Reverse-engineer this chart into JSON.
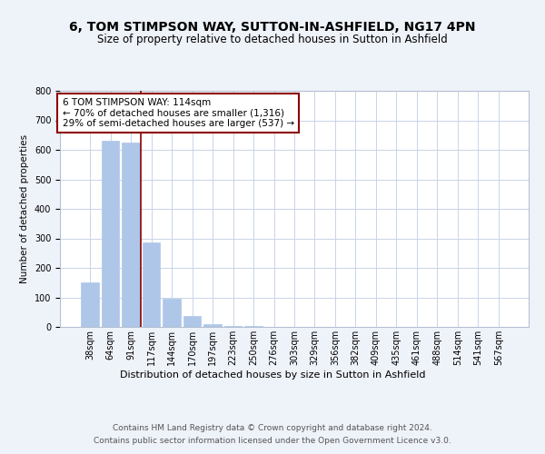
{
  "title": "6, TOM STIMPSON WAY, SUTTON-IN-ASHFIELD, NG17 4PN",
  "subtitle": "Size of property relative to detached houses in Sutton in Ashfield",
  "xlabel": "Distribution of detached houses by size in Sutton in Ashfield",
  "ylabel": "Number of detached properties",
  "categories": [
    "38sqm",
    "64sqm",
    "91sqm",
    "117sqm",
    "144sqm",
    "170sqm",
    "197sqm",
    "223sqm",
    "250sqm",
    "276sqm",
    "303sqm",
    "329sqm",
    "356sqm",
    "382sqm",
    "409sqm",
    "435sqm",
    "461sqm",
    "488sqm",
    "514sqm",
    "541sqm",
    "567sqm"
  ],
  "values": [
    150,
    630,
    625,
    285,
    95,
    38,
    10,
    3,
    2,
    1,
    1,
    1,
    0,
    0,
    1,
    0,
    0,
    0,
    0,
    0,
    0
  ],
  "bar_color": "#aec6e8",
  "bar_edge_color": "#aec6e8",
  "vline_x": 2.5,
  "vline_color": "#8B0000",
  "annotation_text": "6 TOM STIMPSON WAY: 114sqm\n← 70% of detached houses are smaller (1,316)\n29% of semi-detached houses are larger (537) →",
  "annotation_box_color": "white",
  "annotation_box_edge_color": "#8B0000",
  "ylim": [
    0,
    800
  ],
  "yticks": [
    0,
    100,
    200,
    300,
    400,
    500,
    600,
    700,
    800
  ],
  "footnote": "Contains HM Land Registry data © Crown copyright and database right 2024.\nContains public sector information licensed under the Open Government Licence v3.0.",
  "background_color": "#eef2f9",
  "plot_background_color": "white",
  "grid_color": "#c8d4e8",
  "title_fontsize": 10,
  "subtitle_fontsize": 8.5,
  "xlabel_fontsize": 8,
  "ylabel_fontsize": 7.5,
  "tick_fontsize": 7,
  "annotation_fontsize": 7.5,
  "footnote_fontsize": 6.5
}
